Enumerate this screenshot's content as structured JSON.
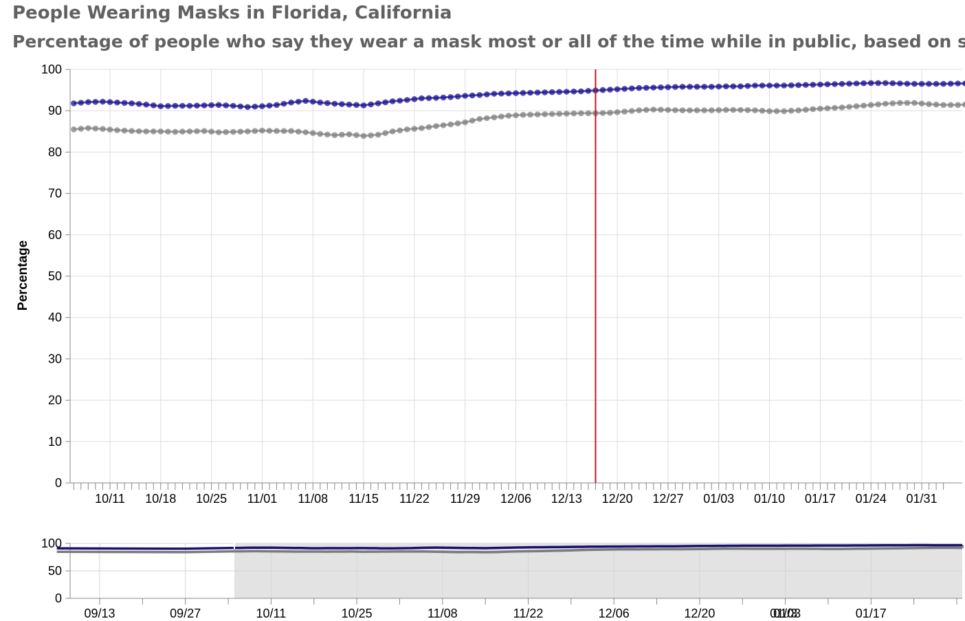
{
  "chart_data": {
    "type": "line",
    "title": "People Wearing Masks in Florida, California",
    "subtitle": "Percentage of people who say they wear a mask most or all of the time while in public, based on sur",
    "ylabel": "Percentage",
    "ylim": [
      0,
      100
    ],
    "yticks": [
      0,
      10,
      20,
      30,
      40,
      50,
      60,
      70,
      80,
      90,
      100
    ],
    "xticks": [
      "10/11",
      "10/18",
      "10/25",
      "11/01",
      "11/08",
      "11/15",
      "11/22",
      "11/29",
      "12/06",
      "12/13",
      "12/20",
      "12/27",
      "01/03",
      "01/10",
      "01/17",
      "01/24",
      "01/31"
    ],
    "x_start": "10/05",
    "x_end": "02/01",
    "grid": true,
    "reference_line_date": "12/17",
    "series": [
      {
        "color": "#1a1090",
        "values": [
          [
            1,
            91.8
          ],
          [
            3,
            92.1
          ],
          [
            5,
            92.2
          ],
          [
            7,
            92.0
          ],
          [
            9,
            91.8
          ],
          [
            11,
            91.5
          ],
          [
            13,
            91.1
          ],
          [
            15,
            91.2
          ],
          [
            17,
            91.2
          ],
          [
            19,
            91.3
          ],
          [
            21,
            91.4
          ],
          [
            23,
            91.2
          ],
          [
            25,
            90.9
          ],
          [
            27,
            91.1
          ],
          [
            29,
            91.4
          ],
          [
            31,
            92.0
          ],
          [
            33,
            92.4
          ],
          [
            35,
            92.0
          ],
          [
            37,
            91.7
          ],
          [
            39,
            91.5
          ],
          [
            41,
            91.3
          ],
          [
            43,
            91.8
          ],
          [
            45,
            92.3
          ],
          [
            47,
            92.6
          ],
          [
            49,
            93.0
          ],
          [
            51,
            93.1
          ],
          [
            53,
            93.3
          ],
          [
            55,
            93.6
          ],
          [
            57,
            93.8
          ],
          [
            59,
            94.1
          ],
          [
            61,
            94.2
          ],
          [
            63,
            94.3
          ],
          [
            65,
            94.4
          ],
          [
            67,
            94.5
          ],
          [
            69,
            94.6
          ],
          [
            71,
            94.7
          ],
          [
            73,
            94.9
          ],
          [
            75,
            95.1
          ],
          [
            77,
            95.3
          ],
          [
            79,
            95.5
          ],
          [
            81,
            95.6
          ],
          [
            83,
            95.7
          ],
          [
            85,
            95.8
          ],
          [
            87,
            95.8
          ],
          [
            89,
            95.8
          ],
          [
            91,
            95.9
          ],
          [
            93,
            95.9
          ],
          [
            95,
            96.1
          ],
          [
            97,
            96.1
          ],
          [
            99,
            96.1
          ],
          [
            101,
            96.2
          ],
          [
            103,
            96.3
          ],
          [
            105,
            96.4
          ],
          [
            107,
            96.5
          ],
          [
            109,
            96.6
          ],
          [
            111,
            96.7
          ],
          [
            113,
            96.7
          ],
          [
            115,
            96.6
          ],
          [
            117,
            96.5
          ],
          [
            119,
            96.5
          ],
          [
            121,
            96.5
          ],
          [
            123,
            96.6
          ],
          [
            125,
            96.6
          ],
          [
            127,
            96.5
          ],
          [
            129,
            96.4
          ],
          [
            131,
            96.4
          ]
        ]
      },
      {
        "color": "#808080",
        "values": [
          [
            1,
            85.5
          ],
          [
            3,
            85.8
          ],
          [
            5,
            85.6
          ],
          [
            7,
            85.3
          ],
          [
            9,
            85.1
          ],
          [
            11,
            85.0
          ],
          [
            13,
            85.0
          ],
          [
            15,
            84.9
          ],
          [
            17,
            85.0
          ],
          [
            19,
            85.1
          ],
          [
            21,
            84.8
          ],
          [
            23,
            84.9
          ],
          [
            25,
            85.0
          ],
          [
            27,
            85.2
          ],
          [
            29,
            85.1
          ],
          [
            31,
            85.1
          ],
          [
            33,
            84.8
          ],
          [
            35,
            84.4
          ],
          [
            37,
            84.1
          ],
          [
            39,
            84.3
          ],
          [
            41,
            83.9
          ],
          [
            43,
            84.2
          ],
          [
            45,
            85.0
          ],
          [
            47,
            85.5
          ],
          [
            49,
            85.8
          ],
          [
            51,
            86.3
          ],
          [
            53,
            86.7
          ],
          [
            55,
            87.2
          ],
          [
            57,
            88.0
          ],
          [
            59,
            88.4
          ],
          [
            61,
            88.8
          ],
          [
            63,
            89.0
          ],
          [
            65,
            89.1
          ],
          [
            67,
            89.2
          ],
          [
            69,
            89.3
          ],
          [
            71,
            89.4
          ],
          [
            73,
            89.4
          ],
          [
            75,
            89.5
          ],
          [
            77,
            89.8
          ],
          [
            79,
            90.1
          ],
          [
            81,
            90.3
          ],
          [
            83,
            90.2
          ],
          [
            85,
            90.1
          ],
          [
            87,
            90.1
          ],
          [
            89,
            90.1
          ],
          [
            91,
            90.2
          ],
          [
            93,
            90.2
          ],
          [
            95,
            90.1
          ],
          [
            97,
            89.9
          ],
          [
            99,
            89.9
          ],
          [
            101,
            90.1
          ],
          [
            103,
            90.4
          ],
          [
            105,
            90.6
          ],
          [
            107,
            90.8
          ],
          [
            109,
            91.1
          ],
          [
            111,
            91.4
          ],
          [
            113,
            91.7
          ],
          [
            115,
            91.9
          ],
          [
            117,
            91.9
          ],
          [
            119,
            91.6
          ],
          [
            121,
            91.4
          ],
          [
            123,
            91.4
          ],
          [
            125,
            91.6
          ],
          [
            127,
            91.8
          ],
          [
            129,
            91.6
          ],
          [
            131,
            91.4
          ]
        ]
      }
    ],
    "overview": {
      "yticks": [
        0,
        50,
        100
      ],
      "xticks": [
        "09/13",
        "09/27",
        "10/11",
        "10/25",
        "11/08",
        "11/22",
        "12/06",
        "12/20",
        "01/03",
        "01/17",
        "01/3"
      ],
      "x_start": "09/06",
      "brush_start": "10/05"
    }
  }
}
